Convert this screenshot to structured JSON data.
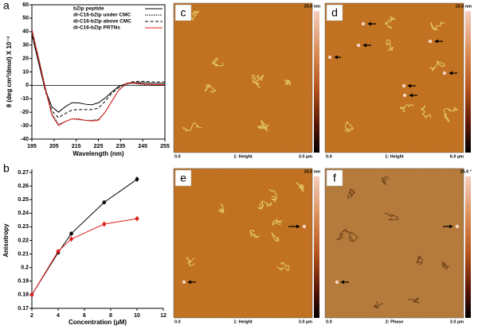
{
  "chart_data": [
    {
      "type": "line",
      "panel": "a",
      "xlabel": "Wavelength (nm)",
      "ylabel": "θ (deg cm²/dmol) X 10⁻³",
      "x": [
        195,
        198,
        201,
        204,
        207,
        210,
        213,
        216,
        219,
        222,
        225,
        228,
        231,
        234,
        237,
        240,
        243,
        246,
        249,
        252,
        255
      ],
      "series": [
        {
          "name": "bZip peptide",
          "color": "#000000",
          "style": "solid",
          "values": [
            38,
            17,
            -3,
            -16,
            -20,
            -16,
            -13,
            -13,
            -14,
            -14.5,
            -13,
            -9.5,
            -5,
            -1,
            1,
            2,
            2,
            2,
            1.5,
            1.5,
            1.5
          ]
        },
        {
          "name": "di-C16-bZip under CMC",
          "color": "#000000",
          "style": "dotted",
          "values": [
            42,
            21,
            -1,
            -21,
            -29,
            -27,
            -25,
            -25.5,
            -26,
            -26,
            -25.5,
            -20,
            -12,
            -4,
            0.5,
            1.5,
            1,
            0.5,
            0,
            0,
            0
          ]
        },
        {
          "name": "di-C16-bZip above CMC",
          "color": "#000000",
          "style": "dashed",
          "values": [
            40,
            18,
            -4,
            -19,
            -24,
            -21,
            -18.5,
            -18,
            -18,
            -18,
            -17,
            -12,
            -6,
            -2,
            1,
            2.5,
            3,
            3,
            2.5,
            2.5,
            2.5
          ]
        },
        {
          "name": "di-C16-bZip PRTNs",
          "color": "#e0201b",
          "style": "solid",
          "values": [
            41,
            20,
            -2,
            -22,
            -30,
            -27,
            -25,
            -25,
            -26,
            -26.5,
            -26,
            -20,
            -12,
            -4,
            1,
            2,
            1.5,
            1,
            0.5,
            0.5,
            0.5
          ]
        }
      ],
      "xlim": [
        195,
        255
      ],
      "xticks": [
        195,
        205,
        215,
        225,
        235,
        245,
        255
      ],
      "ylim": [
        -40,
        60
      ],
      "yticks": [
        -40,
        -30,
        -20,
        -10,
        0,
        10,
        20,
        30,
        40,
        50,
        60
      ],
      "zero_line": true,
      "legend": "upper right"
    },
    {
      "type": "line",
      "panel": "b",
      "xlabel": "Concentration (µM)",
      "ylabel": "Anisotropy",
      "x": [
        2,
        4,
        5,
        7.5,
        10
      ],
      "series": [
        {
          "color": "#000000",
          "values": [
            0.18,
            0.211,
            0.225,
            0.248,
            0.265
          ],
          "errors": [
            0.001,
            0.001,
            0.0015,
            0.0015,
            0.002
          ]
        },
        {
          "color": "#e0201b",
          "values": [
            0.18,
            0.212,
            0.221,
            0.232,
            0.236
          ],
          "errors": [
            0.001,
            0.0015,
            0.002,
            0.002,
            0.002
          ]
        }
      ],
      "markers": true,
      "xlim": [
        2,
        12
      ],
      "xticks": [
        2,
        4,
        6,
        8,
        10,
        12
      ],
      "ylim": [
        0.17,
        0.27
      ],
      "yticks": [
        0.17,
        0.18,
        0.19,
        0.2,
        0.21,
        0.22,
        0.23,
        0.24,
        0.25,
        0.26,
        0.27
      ]
    }
  ],
  "images": [
    {
      "panel": "c",
      "scale_max": "15.0 nm",
      "scale_min": "0.0",
      "channel": "1: Height",
      "size": "3.0 µm"
    },
    {
      "panel": "d",
      "scale_max": "15.0 nm",
      "scale_min": "0.0",
      "channel": "1: Height",
      "size": "6.0 µm"
    },
    {
      "panel": "e",
      "scale_max": "15.0 nm",
      "scale_min": "0.0",
      "channel": "1: Height",
      "size": "3.0 µm"
    },
    {
      "panel": "f",
      "scale_max": "25.0 °",
      "scale_min": "0.0",
      "channel": "2: Phase",
      "size": "3.0 µm"
    }
  ]
}
